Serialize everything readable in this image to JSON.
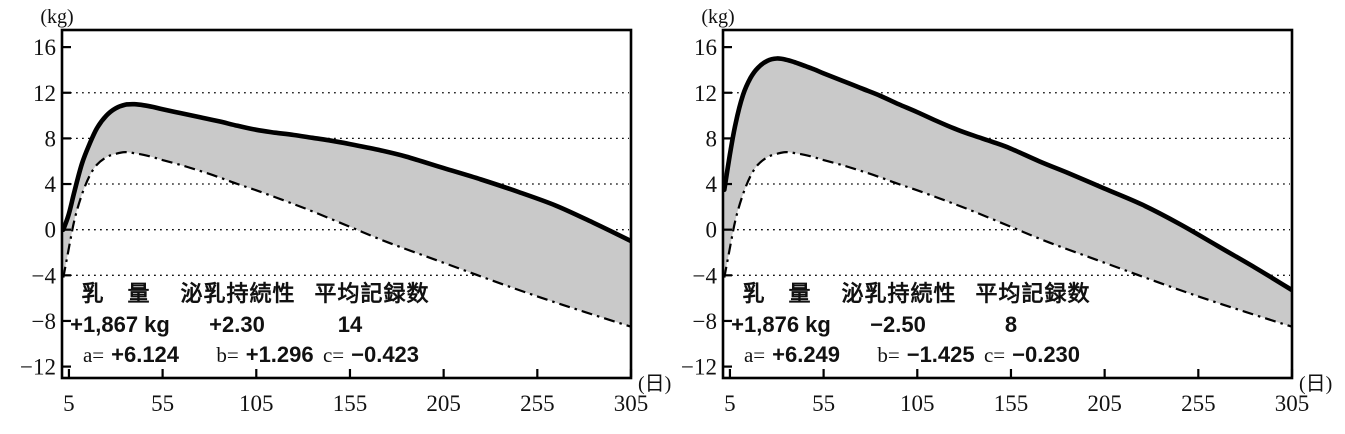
{
  "figure": {
    "background": "#ffffff",
    "curve_color": "#000000",
    "band_fill": "#c9c9c9",
    "grid_color": "#111111"
  },
  "chart_data": [
    {
      "type": "area",
      "panel": "left",
      "title": "",
      "y_unit": "(kg)",
      "x_unit": "(日)",
      "ylim": [
        -12,
        16
      ],
      "xlim": [
        5,
        305
      ],
      "y_ticks": [
        16,
        12,
        8,
        4,
        0,
        -4,
        -8,
        -12
      ],
      "x_ticks": [
        5,
        55,
        105,
        155,
        205,
        255,
        305
      ],
      "grid_y": [
        12,
        8,
        4,
        0,
        -4
      ],
      "legend_position": "none",
      "band_fill": "#c9c9c9",
      "series": [
        {
          "name": "daughters-lactation-curve-upper-solid",
          "style": "solid-thick",
          "x": [
            2,
            5,
            8,
            12,
            16,
            20,
            25,
            30,
            35,
            40,
            45,
            50,
            55,
            65,
            75,
            85,
            95,
            105,
            115,
            125,
            135,
            145,
            155,
            170,
            185,
            205,
            225,
            245,
            265,
            285,
            305
          ],
          "y": [
            0,
            1.4,
            3.4,
            5.8,
            7.5,
            8.9,
            10.0,
            10.65,
            10.95,
            11.0,
            10.9,
            10.75,
            10.55,
            10.2,
            9.85,
            9.5,
            9.1,
            8.75,
            8.5,
            8.3,
            8.05,
            7.8,
            7.5,
            7.0,
            6.4,
            5.4,
            4.4,
            3.3,
            2.1,
            0.6,
            -1.0
          ]
        },
        {
          "name": "base-lactation-curve-lower-dashdot",
          "style": "dash-dot",
          "x": [
            2,
            5,
            8,
            12,
            16,
            20,
            25,
            30,
            35,
            40,
            45,
            50,
            55,
            65,
            75,
            85,
            95,
            105,
            120,
            135,
            155,
            175,
            205,
            230,
            255,
            280,
            305
          ],
          "y": [
            -4.2,
            -1.6,
            0.9,
            3.1,
            4.7,
            5.7,
            6.35,
            6.65,
            6.8,
            6.7,
            6.55,
            6.35,
            6.1,
            5.65,
            5.15,
            4.6,
            4.0,
            3.45,
            2.55,
            1.6,
            0.25,
            -1.1,
            -2.9,
            -4.4,
            -5.85,
            -7.2,
            -8.5
          ]
        }
      ],
      "annotation": {
        "headers": [
          "乳　量",
          "泌乳持続性",
          "平均記録数"
        ],
        "values": [
          "+1,867 kg",
          "+2.30",
          "14"
        ],
        "params": [
          {
            "label": "a=",
            "value": "+6.124"
          },
          {
            "label": "b=",
            "value": "+1.296"
          },
          {
            "label": "c=",
            "value": "-0.423"
          }
        ]
      }
    },
    {
      "type": "area",
      "panel": "right",
      "title": "",
      "y_unit": "(kg)",
      "x_unit": "(日)",
      "ylim": [
        -12,
        16
      ],
      "xlim": [
        5,
        305
      ],
      "y_ticks": [
        16,
        12,
        8,
        4,
        0,
        -4,
        -8,
        -12
      ],
      "x_ticks": [
        5,
        55,
        105,
        155,
        205,
        255,
        305
      ],
      "grid_y": [
        12,
        8,
        4,
        0,
        -4
      ],
      "legend_position": "none",
      "band_fill": "#c9c9c9",
      "series": [
        {
          "name": "daughters-lactation-curve-upper-solid",
          "style": "solid-thick",
          "x": [
            2,
            5,
            8,
            12,
            16,
            20,
            25,
            30,
            35,
            40,
            45,
            50,
            55,
            65,
            75,
            85,
            95,
            105,
            115,
            125,
            135,
            145,
            155,
            170,
            185,
            205,
            225,
            245,
            265,
            285,
            305
          ],
          "y": [
            3.5,
            6.6,
            9.3,
            11.8,
            13.3,
            14.2,
            14.8,
            15.0,
            14.9,
            14.65,
            14.35,
            14.05,
            13.7,
            13.05,
            12.4,
            11.75,
            11.0,
            10.3,
            9.55,
            8.85,
            8.25,
            7.7,
            7.1,
            6.0,
            5.0,
            3.6,
            2.2,
            0.5,
            -1.4,
            -3.3,
            -5.3
          ]
        },
        {
          "name": "base-lactation-curve-lower-dashdot",
          "style": "dash-dot",
          "x": [
            2,
            5,
            8,
            12,
            16,
            20,
            25,
            30,
            35,
            40,
            45,
            50,
            55,
            65,
            75,
            85,
            95,
            105,
            120,
            135,
            155,
            175,
            205,
            230,
            255,
            280,
            305
          ],
          "y": [
            -4.2,
            -1.6,
            0.9,
            3.1,
            4.7,
            5.7,
            6.35,
            6.65,
            6.8,
            6.7,
            6.55,
            6.35,
            6.1,
            5.65,
            5.15,
            4.6,
            4.0,
            3.45,
            2.55,
            1.6,
            0.25,
            -1.1,
            -2.9,
            -4.4,
            -5.85,
            -7.2,
            -8.5
          ]
        }
      ],
      "annotation": {
        "headers": [
          "乳　量",
          "泌乳持続性",
          "平均記録数"
        ],
        "values": [
          "+1,876 kg",
          "-2.50",
          "8"
        ],
        "params": [
          {
            "label": "a=",
            "value": "+6.249"
          },
          {
            "label": "b=",
            "value": "-1.425"
          },
          {
            "label": "c=",
            "value": "-0.230"
          }
        ]
      }
    }
  ]
}
